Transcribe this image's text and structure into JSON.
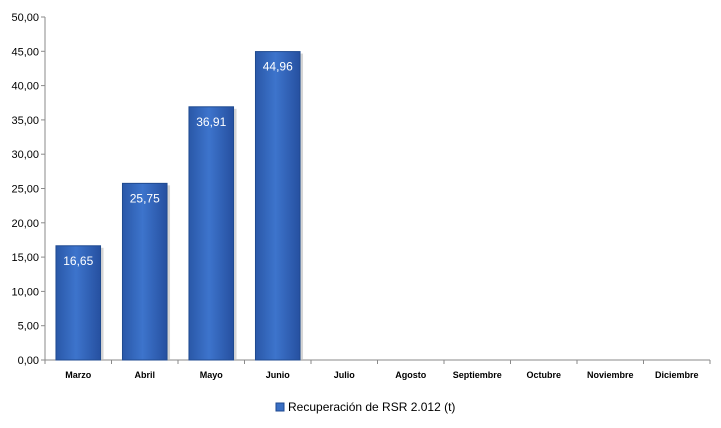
{
  "chart_data": {
    "type": "bar",
    "categories": [
      "Marzo",
      "Abril",
      "Mayo",
      "Junio",
      "Julio",
      "Agosto",
      "Septiembre",
      "Octubre",
      "Noviembre",
      "Diciembre"
    ],
    "series": [
      {
        "name": "Recuperación de RSR 2.012 (t)",
        "values": [
          16.65,
          25.75,
          36.91,
          44.96,
          null,
          null,
          null,
          null,
          null,
          null
        ],
        "data_labels": [
          "16,65",
          "25,75",
          "36,91",
          "44,96",
          "",
          "",
          "",
          "",
          "",
          ""
        ]
      }
    ],
    "yticks": [
      "0,00",
      "5,00",
      "10,00",
      "15,00",
      "20,00",
      "25,00",
      "30,00",
      "35,00",
      "40,00",
      "45,00",
      "50,00"
    ],
    "ylim": [
      0,
      50
    ],
    "grid": false,
    "legend_position": "bottom",
    "bar_color": "#3a6fc4",
    "title": "",
    "xlabel": "",
    "ylabel": ""
  }
}
